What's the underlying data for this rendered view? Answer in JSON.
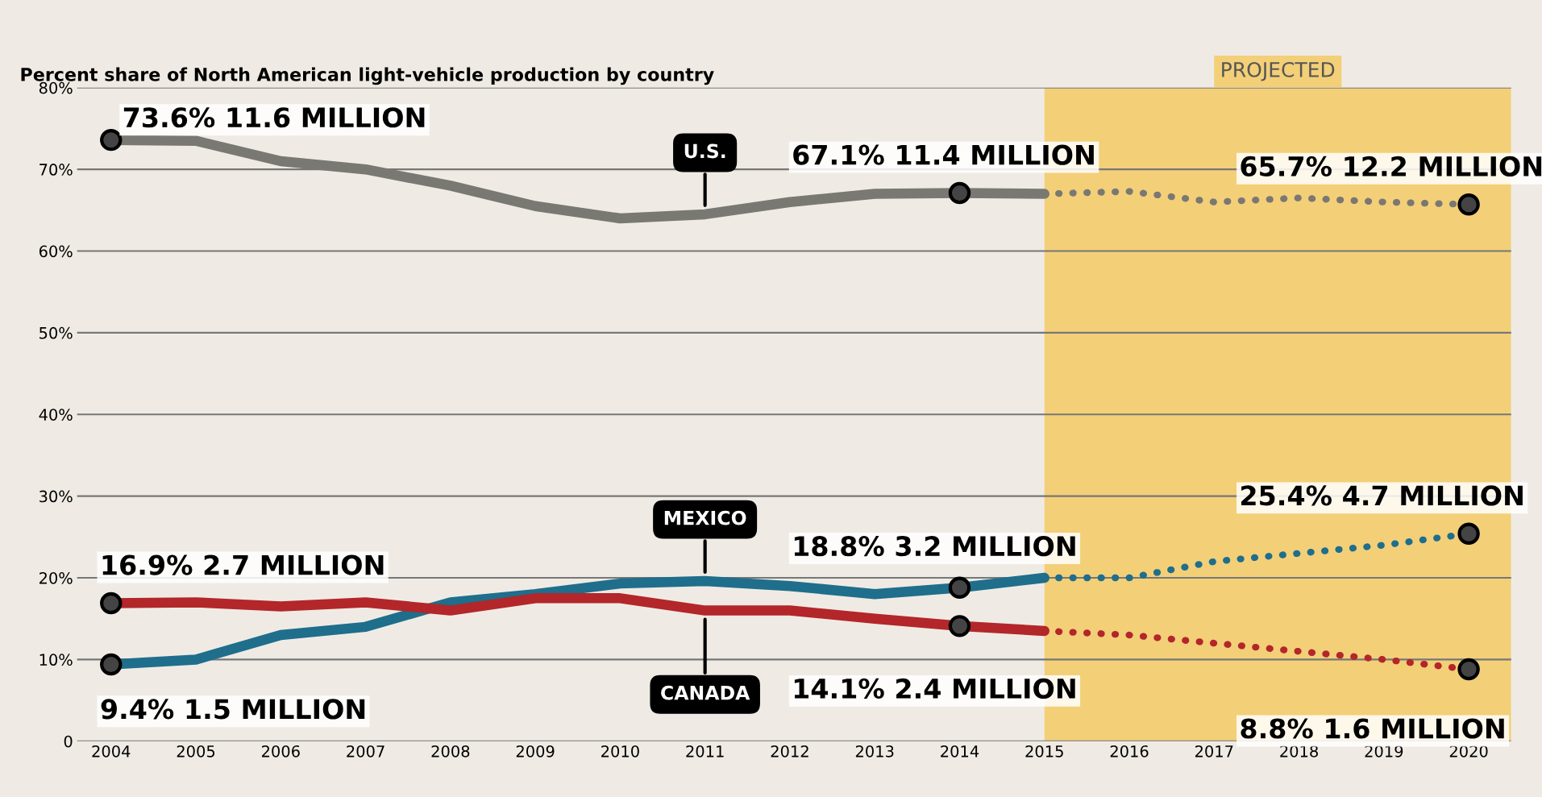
{
  "chart_data": {
    "type": "line",
    "title": "Percent share of North American light-vehicle production by country",
    "xlim": [
      2003.6,
      2020.5
    ],
    "xticks": [
      2004,
      2005,
      2006,
      2007,
      2008,
      2009,
      2010,
      2011,
      2012,
      2013,
      2014,
      2015,
      2016,
      2017,
      2018,
      2019,
      2020
    ],
    "ylim": [
      0,
      80
    ],
    "yticks": [
      {
        "value": 0,
        "label": "0"
      },
      {
        "value": 10,
        "label": "10%"
      },
      {
        "value": 20,
        "label": "20%"
      },
      {
        "value": 30,
        "label": "30%"
      },
      {
        "value": 40,
        "label": "40%"
      },
      {
        "value": 50,
        "label": "50%"
      },
      {
        "value": 60,
        "label": "60%"
      },
      {
        "value": 70,
        "label": "70%"
      },
      {
        "value": 80,
        "label": "80%"
      }
    ],
    "grid": "y",
    "line_style": "solid",
    "bands": [
      {
        "axis": "x",
        "from": 2015,
        "to": 2020.5,
        "label": "PROJECTED",
        "color": "#f3cf78"
      }
    ],
    "series": [
      {
        "name": "U.S.",
        "color": "#7a7873",
        "x": [
          2004,
          2005,
          2006,
          2007,
          2008,
          2009,
          2010,
          2011,
          2012,
          2013,
          2014,
          2015
        ],
        "values": [
          73.6,
          73.5,
          71,
          70,
          68,
          65.5,
          64,
          64.5,
          66,
          67,
          67.1,
          67
        ]
      },
      {
        "name": "MEXICO",
        "color": "#1f6e8c",
        "x": [
          2004,
          2005,
          2006,
          2007,
          2008,
          2009,
          2010,
          2011,
          2012,
          2013,
          2014,
          2015
        ],
        "values": [
          9.4,
          10,
          13,
          14,
          17,
          18,
          19.3,
          19.6,
          19,
          18,
          18.8,
          20
        ]
      },
      {
        "name": "CANADA",
        "color": "#b3262a",
        "x": [
          2004,
          2005,
          2006,
          2007,
          2008,
          2009,
          2010,
          2011,
          2012,
          2013,
          2014,
          2015
        ],
        "values": [
          16.9,
          17,
          16.5,
          17,
          16,
          17.5,
          17.5,
          16,
          16,
          15,
          14.1,
          13.5
        ]
      },
      {
        "color": "#7a7873",
        "line_style": "dotted",
        "x": [
          2015,
          2016,
          2017,
          2018,
          2019,
          2020
        ],
        "values": [
          67,
          67.3,
          66,
          66.5,
          66,
          65.7
        ]
      },
      {
        "color": "#1f6e8c",
        "line_style": "dotted",
        "x": [
          2015,
          2016,
          2017,
          2018,
          2019,
          2020
        ],
        "values": [
          20,
          20,
          22,
          23,
          24,
          25.4
        ]
      },
      {
        "color": "#b3262a",
        "line_style": "dotted",
        "x": [
          2015,
          2016,
          2017,
          2018,
          2019,
          2020
        ],
        "values": [
          13.5,
          13,
          12,
          11,
          10,
          8.8
        ]
      }
    ],
    "annotations": [
      {
        "text": "73.6% 11.6 MILLION",
        "x": 2004,
        "y": 73.6
      },
      {
        "text": "67.1% 11.4 MILLION",
        "x": 2014,
        "y": 67.1
      },
      {
        "text": "65.7% 12.2 MILLION",
        "x": 2020,
        "y": 65.7
      },
      {
        "text": "16.9% 2.7 MILLION",
        "x": 2004,
        "y": 16.9
      },
      {
        "text": "9.4% 1.5 MILLION",
        "x": 2004,
        "y": 9.4
      },
      {
        "text": "18.8% 3.2 MILLION",
        "x": 2014,
        "y": 18.8
      },
      {
        "text": "14.1% 2.4 MILLION",
        "x": 2014,
        "y": 14.1
      },
      {
        "text": "25.4% 4.7 MILLION",
        "x": 2020,
        "y": 25.4
      },
      {
        "text": "8.8% 1.6 MILLION",
        "x": 2020,
        "y": 8.8
      }
    ]
  }
}
